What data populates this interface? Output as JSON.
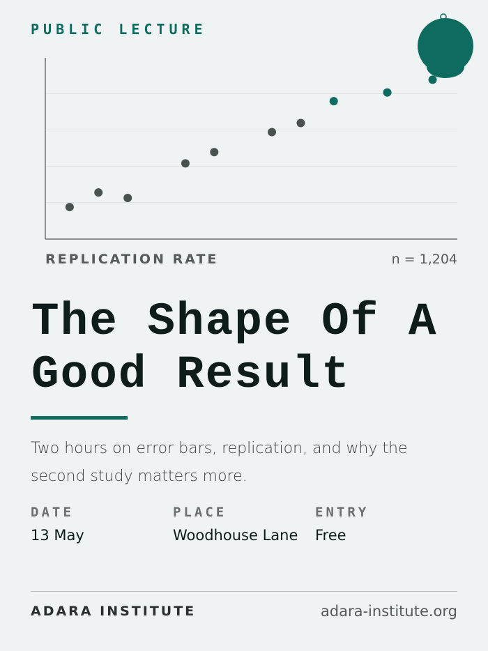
{
  "eyebrow": "PUBLIC LECTURE",
  "chart_data": {
    "type": "scatter",
    "x_label": "REPLICATION RATE",
    "annotation": "n = 1,204",
    "x": [
      0.59,
      1.29,
      2.0,
      3.4,
      4.1,
      5.5,
      6.2,
      7.0,
      8.3,
      9.4
    ],
    "values": [
      0.88,
      1.28,
      1.13,
      2.08,
      2.39,
      2.94,
      3.19,
      3.79,
      4.03,
      4.38
    ],
    "colors": [
      "#4a5250",
      "#4a5250",
      "#4a5250",
      "#4a5250",
      "#4a5250",
      "#4a5250",
      "#4a5250",
      "#0e6b5f",
      "#0e6b5f",
      "#0e6b5f"
    ],
    "xlim": [
      0,
      10
    ],
    "ylim": [
      0,
      5
    ],
    "yticks": [
      1,
      2,
      3,
      4
    ],
    "grid": true
  },
  "title": "The Shape Of A Good Result",
  "description": "Two hours on error bars, replication, and why the second study matters more.",
  "details": [
    {
      "label": "DATE",
      "value": "13 May"
    },
    {
      "label": "PLACE",
      "value": "Woodhouse Lane"
    },
    {
      "label": "ENTRY",
      "value": "Free"
    }
  ],
  "footer": {
    "organization": "ADARA INSTITUTE",
    "url": "adara-institute.org"
  }
}
